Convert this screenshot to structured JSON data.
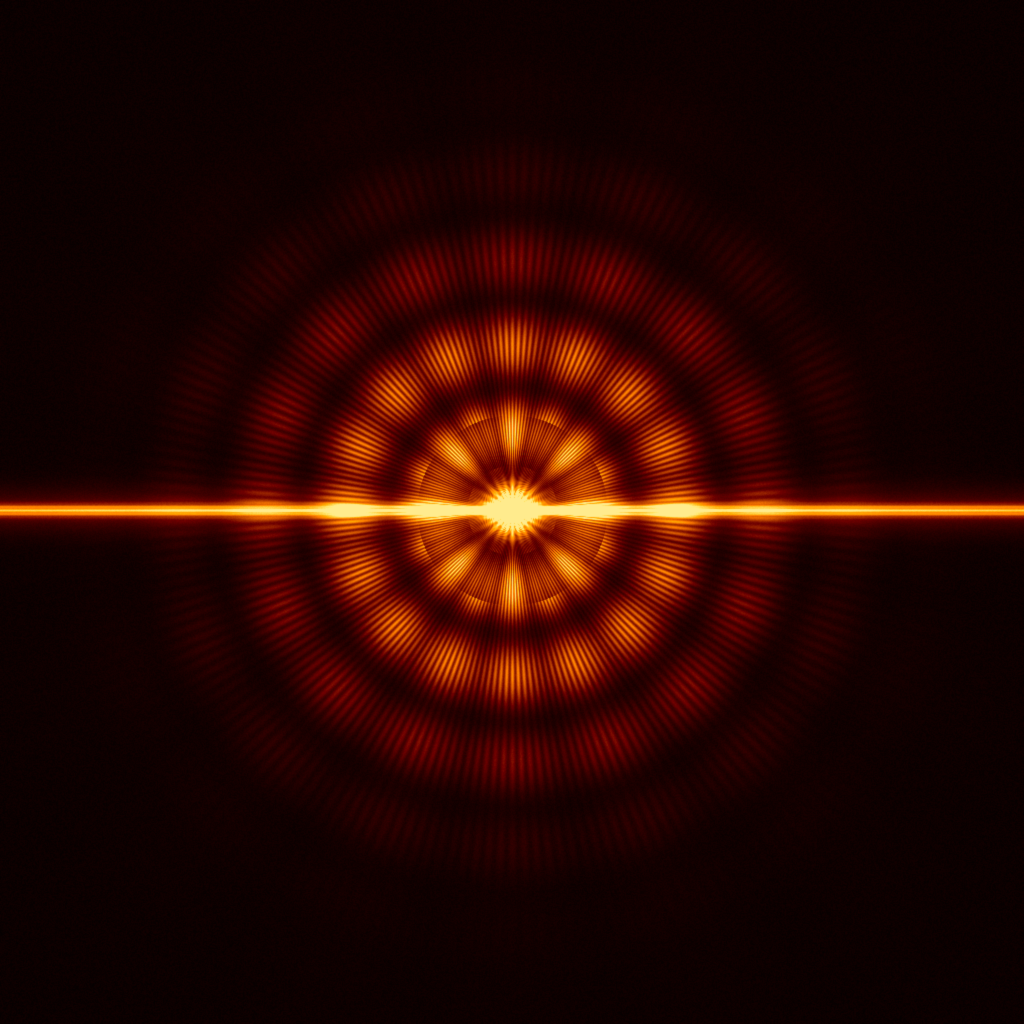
{
  "image": {
    "subject": "diffraction-pattern",
    "palette": {
      "background": "#050100",
      "dark_red": "#3a0a00",
      "orange": "#ff6a10",
      "bright_orange": "#ffa030",
      "yellow": "#ffe070",
      "white_hot": "#fff4c8"
    },
    "petal_count": 16,
    "has_horizontal_streak": true
  }
}
